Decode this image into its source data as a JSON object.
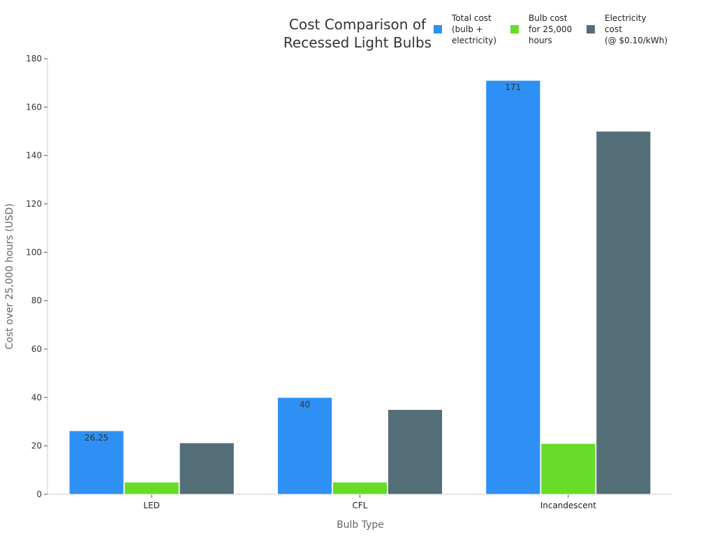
{
  "chart_data": {
    "type": "bar",
    "title": "Cost Comparison of\nRecessed Light Bulbs",
    "xlabel": "Bulb Type",
    "ylabel": "Cost over 25,000 hours (USD)",
    "ylim": [
      0,
      180
    ],
    "yticks": [
      0,
      20,
      40,
      60,
      80,
      100,
      120,
      140,
      160,
      180
    ],
    "grid": false,
    "legend_placement": "top-right",
    "categories": [
      "LED",
      "CFL",
      "Incandescent"
    ],
    "series": [
      {
        "name": "Total cost\n(bulb +\nelectricity)",
        "color": "#2e90f5",
        "values": [
          26.25,
          40,
          171
        ],
        "data_labels": [
          "26.25",
          "40",
          "171"
        ]
      },
      {
        "name": "Bulb cost\nfor 25,000\nhours",
        "color": "#66dc28",
        "values": [
          5,
          5,
          21
        ]
      },
      {
        "name": "Electricity\ncost\n(@ $0.10/kWh)",
        "color": "#546e78",
        "values": [
          21.25,
          35,
          150
        ]
      }
    ]
  }
}
